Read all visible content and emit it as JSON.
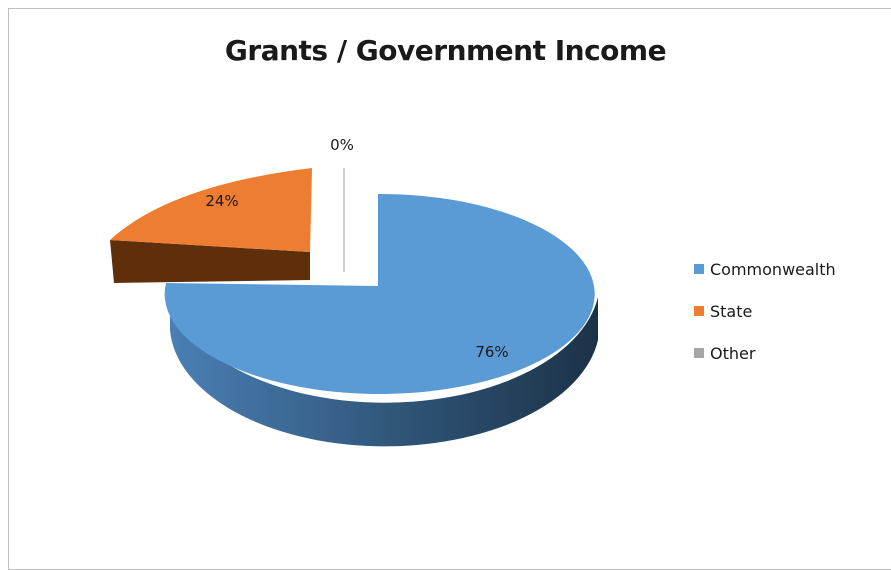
{
  "chart_data": {
    "type": "pie",
    "title": "Grants / Government Income",
    "categories": [
      "Commonwealth",
      "State",
      "Other"
    ],
    "values": [
      76,
      24,
      0
    ],
    "data_labels": [
      "76%",
      "24%",
      "0%"
    ],
    "colors": [
      "#5b9bd5",
      "#ed7d31",
      "#a5a5a5"
    ],
    "style": "3d-exploded",
    "legend_position": "right"
  }
}
